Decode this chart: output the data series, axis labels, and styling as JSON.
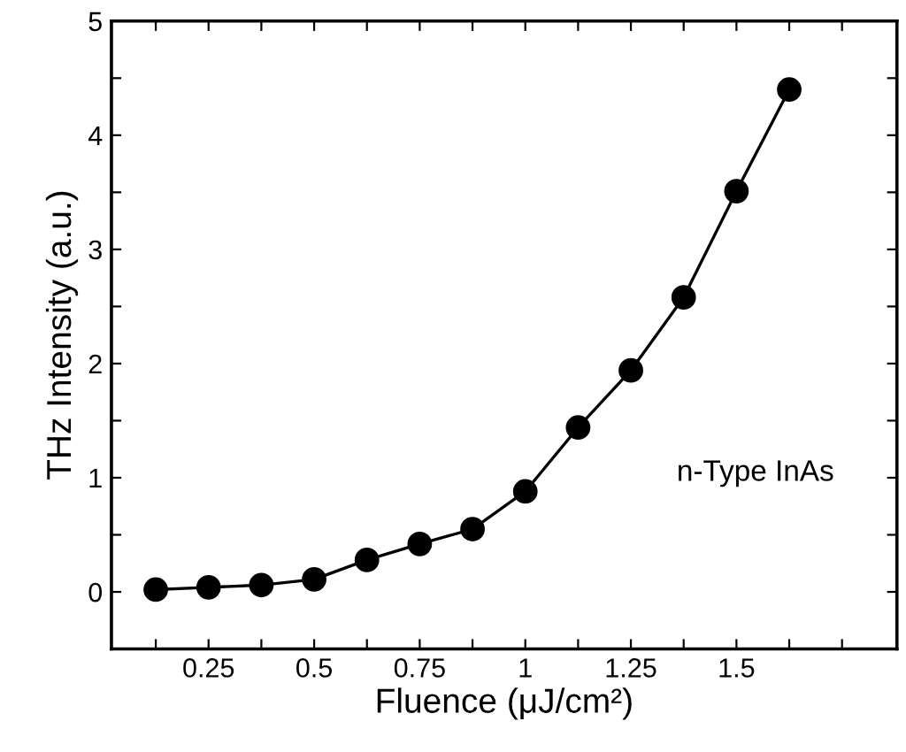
{
  "chart_data": {
    "type": "line",
    "xlabel": "Fluence (μJ/cm²)",
    "ylabel": "THz Intensity (a.u.)",
    "x": [
      0.125,
      0.25,
      0.375,
      0.5,
      0.625,
      0.75,
      0.875,
      1.0,
      1.125,
      1.25,
      1.375,
      1.5,
      1.625
    ],
    "series": [
      {
        "color": "#000000",
        "values": [
          0.02,
          0.04,
          0.06,
          0.11,
          0.28,
          0.42,
          0.55,
          0.88,
          1.44,
          1.94,
          2.58,
          3.51,
          4.4
        ]
      }
    ],
    "marker": "circle",
    "line_style": "solid",
    "grid": false,
    "legend": false,
    "xlim": [
      0.02,
      1.88
    ],
    "xticks": [
      {
        "value": 0.125,
        "label": null
      },
      0.25,
      {
        "value": 0.375,
        "label": null
      },
      0.5,
      {
        "value": 0.625,
        "label": null
      },
      0.75,
      {
        "value": 0.875,
        "label": null
      },
      1,
      {
        "value": 1.125,
        "label": null
      },
      1.25,
      {
        "value": 1.375,
        "label": null
      },
      1.5,
      {
        "value": 1.625,
        "label": null
      },
      {
        "value": 1.75,
        "label": null
      }
    ],
    "ylim": [
      -0.5,
      5
    ],
    "yticks": [
      0,
      {
        "value": 0.5,
        "label": null
      },
      1,
      {
        "value": 1.5,
        "label": null
      },
      2,
      {
        "value": 2.5,
        "label": null
      },
      3,
      {
        "value": 3.5,
        "label": null
      },
      4,
      {
        "value": 4.5,
        "label": null
      },
      5
    ],
    "annotations": [
      "n-Type InAs"
    ]
  }
}
